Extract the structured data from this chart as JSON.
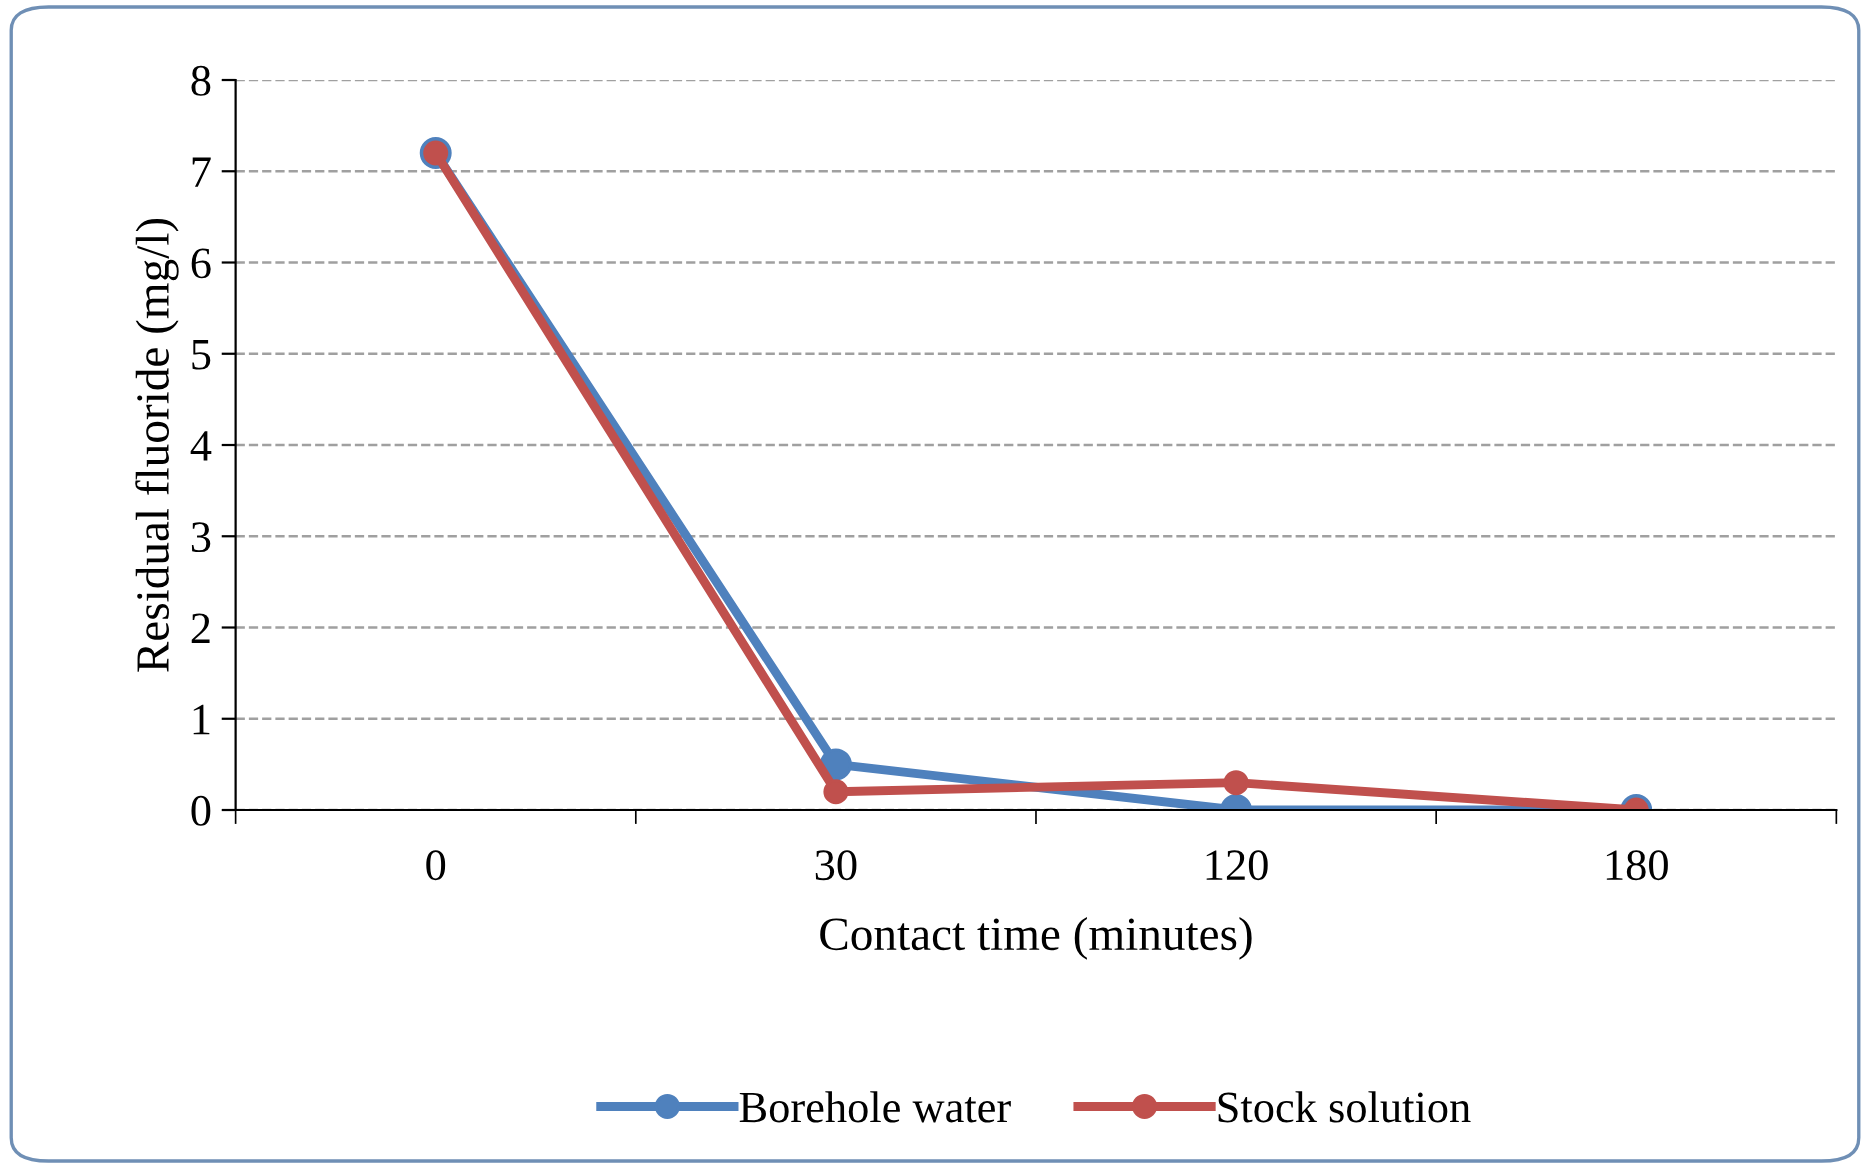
{
  "chart_data": {
    "type": "line",
    "xlabel": "Contact time (minutes)",
    "ylabel": "Residual fluoride (mg/l)",
    "categories": [
      "0",
      "30",
      "120",
      "180"
    ],
    "series": [
      {
        "name": "Borehole water",
        "color": "#4f81bd",
        "values": [
          7.2,
          0.5,
          0,
          0
        ]
      },
      {
        "name": "Stock solution",
        "color": "#c0504d",
        "values": [
          7.2,
          0.2,
          0.3,
          0
        ]
      }
    ],
    "ylim": [
      0,
      8
    ],
    "yticks": [
      0,
      1,
      2,
      3,
      4,
      5,
      6,
      7,
      8
    ],
    "grid": "y",
    "legend": "bottom",
    "marker": "circle",
    "line_style": "solid"
  }
}
